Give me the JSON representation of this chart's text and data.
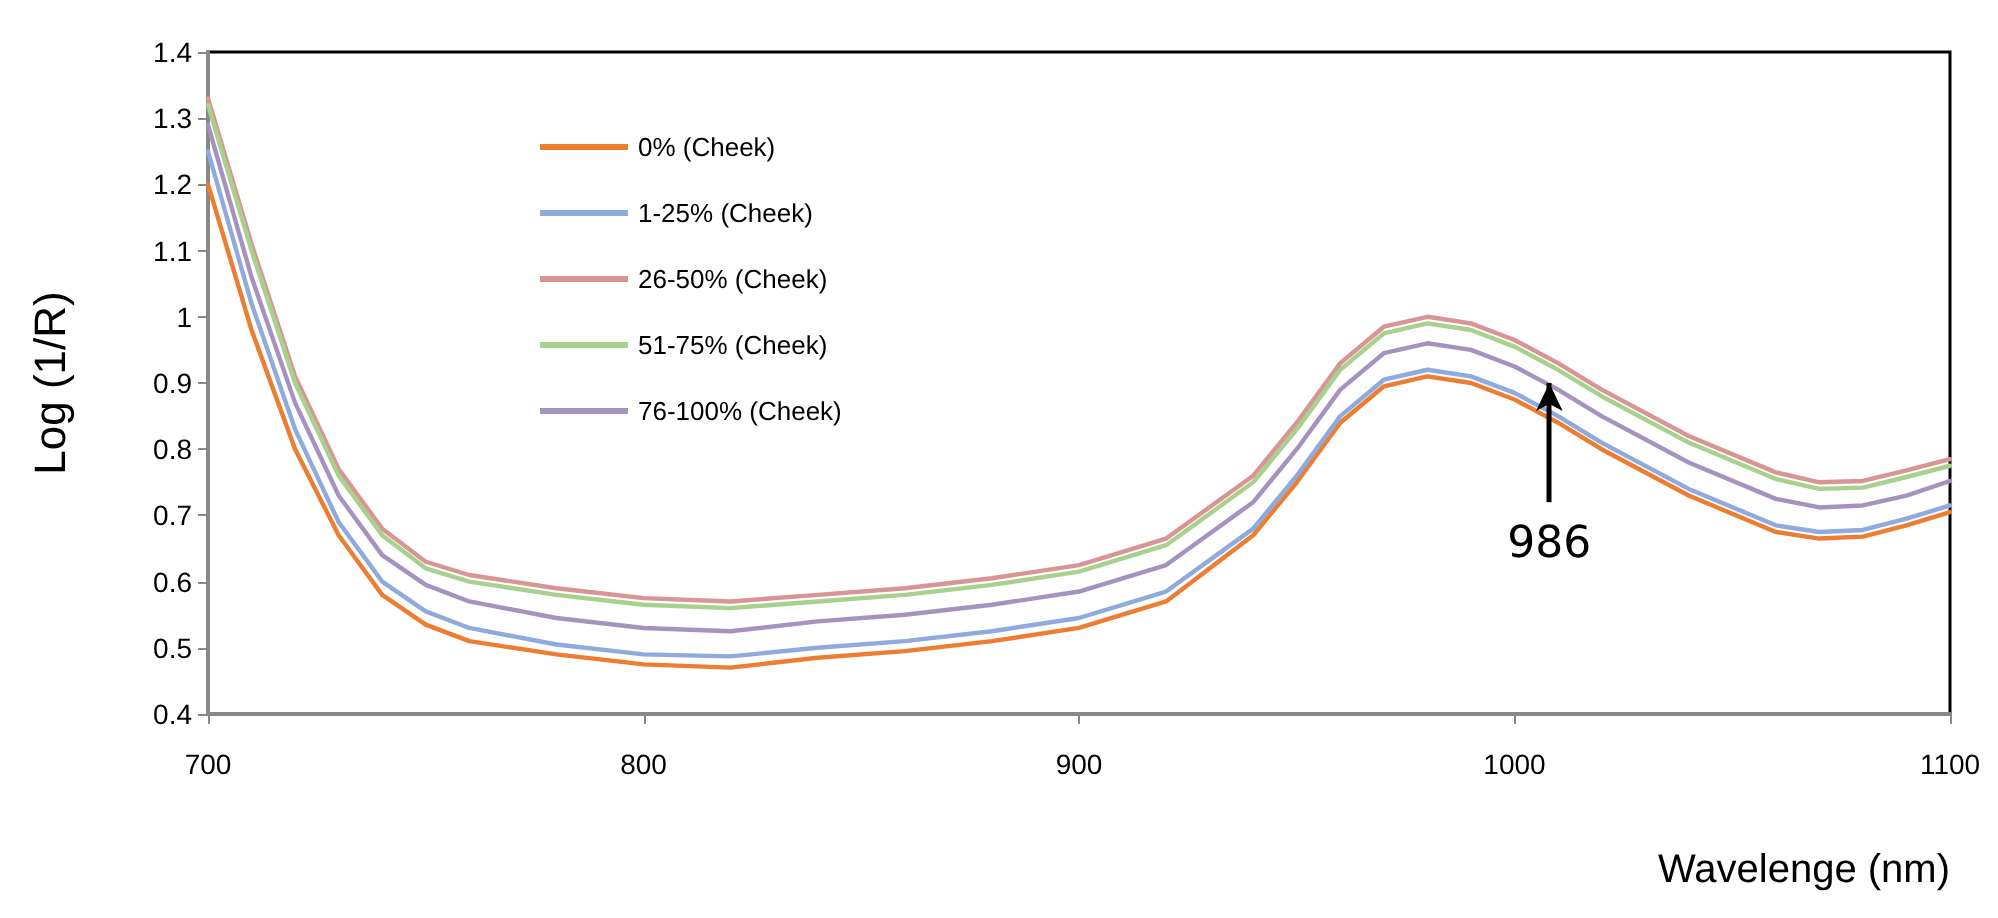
{
  "chart_data": {
    "type": "line",
    "xlabel": "Wavelenge (nm)",
    "ylabel": "Log (1/R)",
    "x": [
      700,
      710,
      720,
      730,
      740,
      750,
      760,
      780,
      800,
      820,
      840,
      860,
      880,
      900,
      920,
      940,
      950,
      960,
      970,
      980,
      990,
      1000,
      1010,
      1020,
      1040,
      1060,
      1070,
      1080,
      1090,
      1100
    ],
    "series": [
      {
        "name": "0% (Cheek)",
        "color": "#ed7d31",
        "values": [
          1.2,
          0.98,
          0.8,
          0.67,
          0.58,
          0.535,
          0.51,
          0.49,
          0.475,
          0.47,
          0.485,
          0.495,
          0.51,
          0.53,
          0.57,
          0.67,
          0.75,
          0.84,
          0.895,
          0.91,
          0.9,
          0.875,
          0.84,
          0.8,
          0.73,
          0.675,
          0.665,
          0.668,
          0.685,
          0.705
        ]
      },
      {
        "name": "1-25% (Cheek)",
        "color": "#8faadc",
        "values": [
          1.25,
          1.02,
          0.83,
          0.69,
          0.6,
          0.555,
          0.53,
          0.505,
          0.49,
          0.487,
          0.5,
          0.51,
          0.525,
          0.545,
          0.585,
          0.68,
          0.76,
          0.85,
          0.905,
          0.92,
          0.91,
          0.885,
          0.85,
          0.81,
          0.74,
          0.685,
          0.675,
          0.678,
          0.695,
          0.715
        ]
      },
      {
        "name": "26-50% (Cheek)",
        "color": "#d99594",
        "values": [
          1.33,
          1.11,
          0.91,
          0.77,
          0.68,
          0.63,
          0.61,
          0.59,
          0.575,
          0.57,
          0.58,
          0.59,
          0.605,
          0.625,
          0.665,
          0.76,
          0.84,
          0.93,
          0.985,
          1.0,
          0.99,
          0.965,
          0.93,
          0.89,
          0.82,
          0.765,
          0.75,
          0.752,
          0.768,
          0.785
        ]
      },
      {
        "name": "51-75% (Cheek)",
        "color": "#a9d18e",
        "values": [
          1.32,
          1.1,
          0.9,
          0.76,
          0.67,
          0.62,
          0.6,
          0.58,
          0.565,
          0.56,
          0.57,
          0.58,
          0.595,
          0.615,
          0.655,
          0.75,
          0.83,
          0.92,
          0.975,
          0.99,
          0.98,
          0.955,
          0.92,
          0.88,
          0.81,
          0.755,
          0.74,
          0.742,
          0.758,
          0.775
        ]
      },
      {
        "name": "76-100% (Cheek)",
        "color": "#a692c0",
        "values": [
          1.29,
          1.06,
          0.87,
          0.73,
          0.64,
          0.595,
          0.57,
          0.545,
          0.53,
          0.525,
          0.54,
          0.55,
          0.565,
          0.585,
          0.625,
          0.72,
          0.8,
          0.89,
          0.945,
          0.96,
          0.95,
          0.925,
          0.89,
          0.85,
          0.78,
          0.725,
          0.712,
          0.715,
          0.73,
          0.752
        ]
      }
    ],
    "xlim": [
      700,
      1100
    ],
    "xticks": [
      700,
      800,
      900,
      1000,
      1100
    ],
    "ylim": [
      0.4,
      1.4
    ],
    "yticks": [
      0.4,
      0.5,
      0.6,
      0.7,
      0.8,
      0.9,
      1,
      1.1,
      1.2,
      1.3,
      1.4
    ],
    "annotations": [
      {
        "text": "986",
        "x": 1008,
        "y": 0.9
      }
    ],
    "legend": "top left",
    "grid": false,
    "marker": "none",
    "line_style": "solid"
  }
}
